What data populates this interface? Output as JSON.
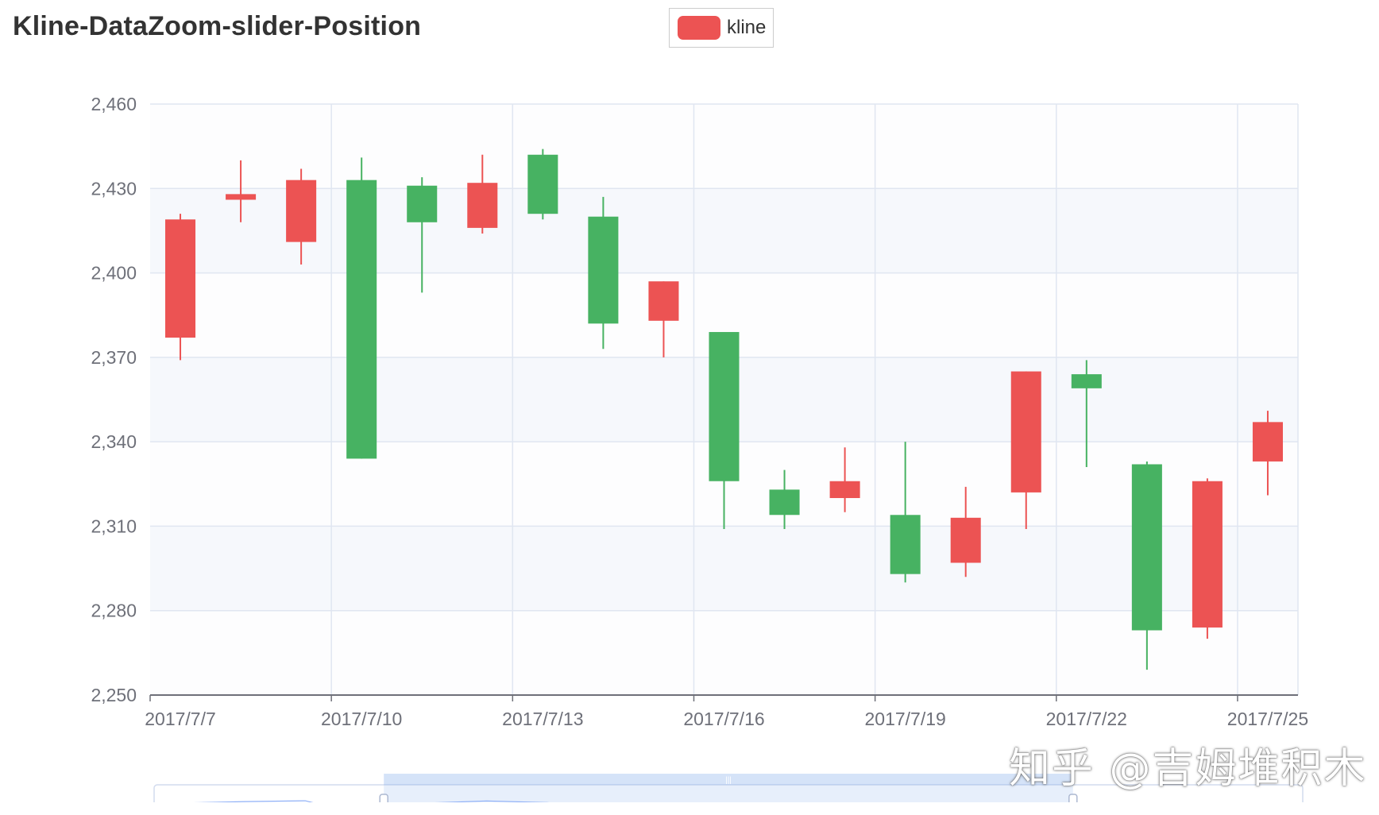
{
  "chart_data": {
    "type": "candlestick",
    "title": "Kline-DataZoom-slider-Position",
    "legend": {
      "label": "kline",
      "placement": "top-center"
    },
    "colors": {
      "up": "#EC5353",
      "down": "#47B262",
      "grid": "#E0E6F1",
      "band": "#F6F8FC",
      "axis": "#6E7079"
    },
    "ylim": [
      2250,
      2460
    ],
    "y_ticks": [
      2250,
      2280,
      2310,
      2340,
      2370,
      2400,
      2430,
      2460
    ],
    "y_tick_labels": [
      "2,250",
      "2,280",
      "2,310",
      "2,340",
      "2,370",
      "2,400",
      "2,430",
      "2,460"
    ],
    "x_tick_labels": [
      "2017/7/7",
      "2017/7/10",
      "2017/7/13",
      "2017/7/16",
      "2017/7/19",
      "2017/7/22",
      "2017/7/25"
    ],
    "split_area": true,
    "datazoom": {
      "type": "slider",
      "position": "bottom",
      "start_fraction": 0.2,
      "end_fraction": 0.8
    },
    "candles": [
      {
        "open": 2377,
        "close": 2419,
        "low": 2369,
        "high": 2421
      },
      {
        "open": 2426,
        "close": 2428,
        "low": 2418,
        "high": 2440
      },
      {
        "open": 2411,
        "close": 2433,
        "low": 2403,
        "high": 2437
      },
      {
        "open": 2433,
        "close": 2334,
        "low": 2334,
        "high": 2441
      },
      {
        "open": 2431,
        "close": 2418,
        "low": 2393,
        "high": 2434
      },
      {
        "open": 2416,
        "close": 2432,
        "low": 2414,
        "high": 2442
      },
      {
        "open": 2442,
        "close": 2421,
        "low": 2419,
        "high": 2444
      },
      {
        "open": 2420,
        "close": 2382,
        "low": 2373,
        "high": 2427
      },
      {
        "open": 2383,
        "close": 2397,
        "low": 2370,
        "high": 2397
      },
      {
        "open": 2379,
        "close": 2326,
        "low": 2309,
        "high": 2379
      },
      {
        "open": 2323,
        "close": 2314,
        "low": 2309,
        "high": 2330
      },
      {
        "open": 2320,
        "close": 2326,
        "low": 2315,
        "high": 2338
      },
      {
        "open": 2314,
        "close": 2293,
        "low": 2290,
        "high": 2340
      },
      {
        "open": 2297,
        "close": 2313,
        "low": 2292,
        "high": 2324
      },
      {
        "open": 2322,
        "close": 2365,
        "low": 2309,
        "high": 2365
      },
      {
        "open": 2364,
        "close": 2359,
        "low": 2331,
        "high": 2369
      },
      {
        "open": 2332,
        "close": 2273,
        "low": 2259,
        "high": 2333
      },
      {
        "open": 2274,
        "close": 2326,
        "low": 2270,
        "high": 2327
      },
      {
        "open": 2333,
        "close": 2347,
        "low": 2321,
        "high": 2351
      }
    ]
  },
  "watermark": "知乎 @吉姆堆积木"
}
